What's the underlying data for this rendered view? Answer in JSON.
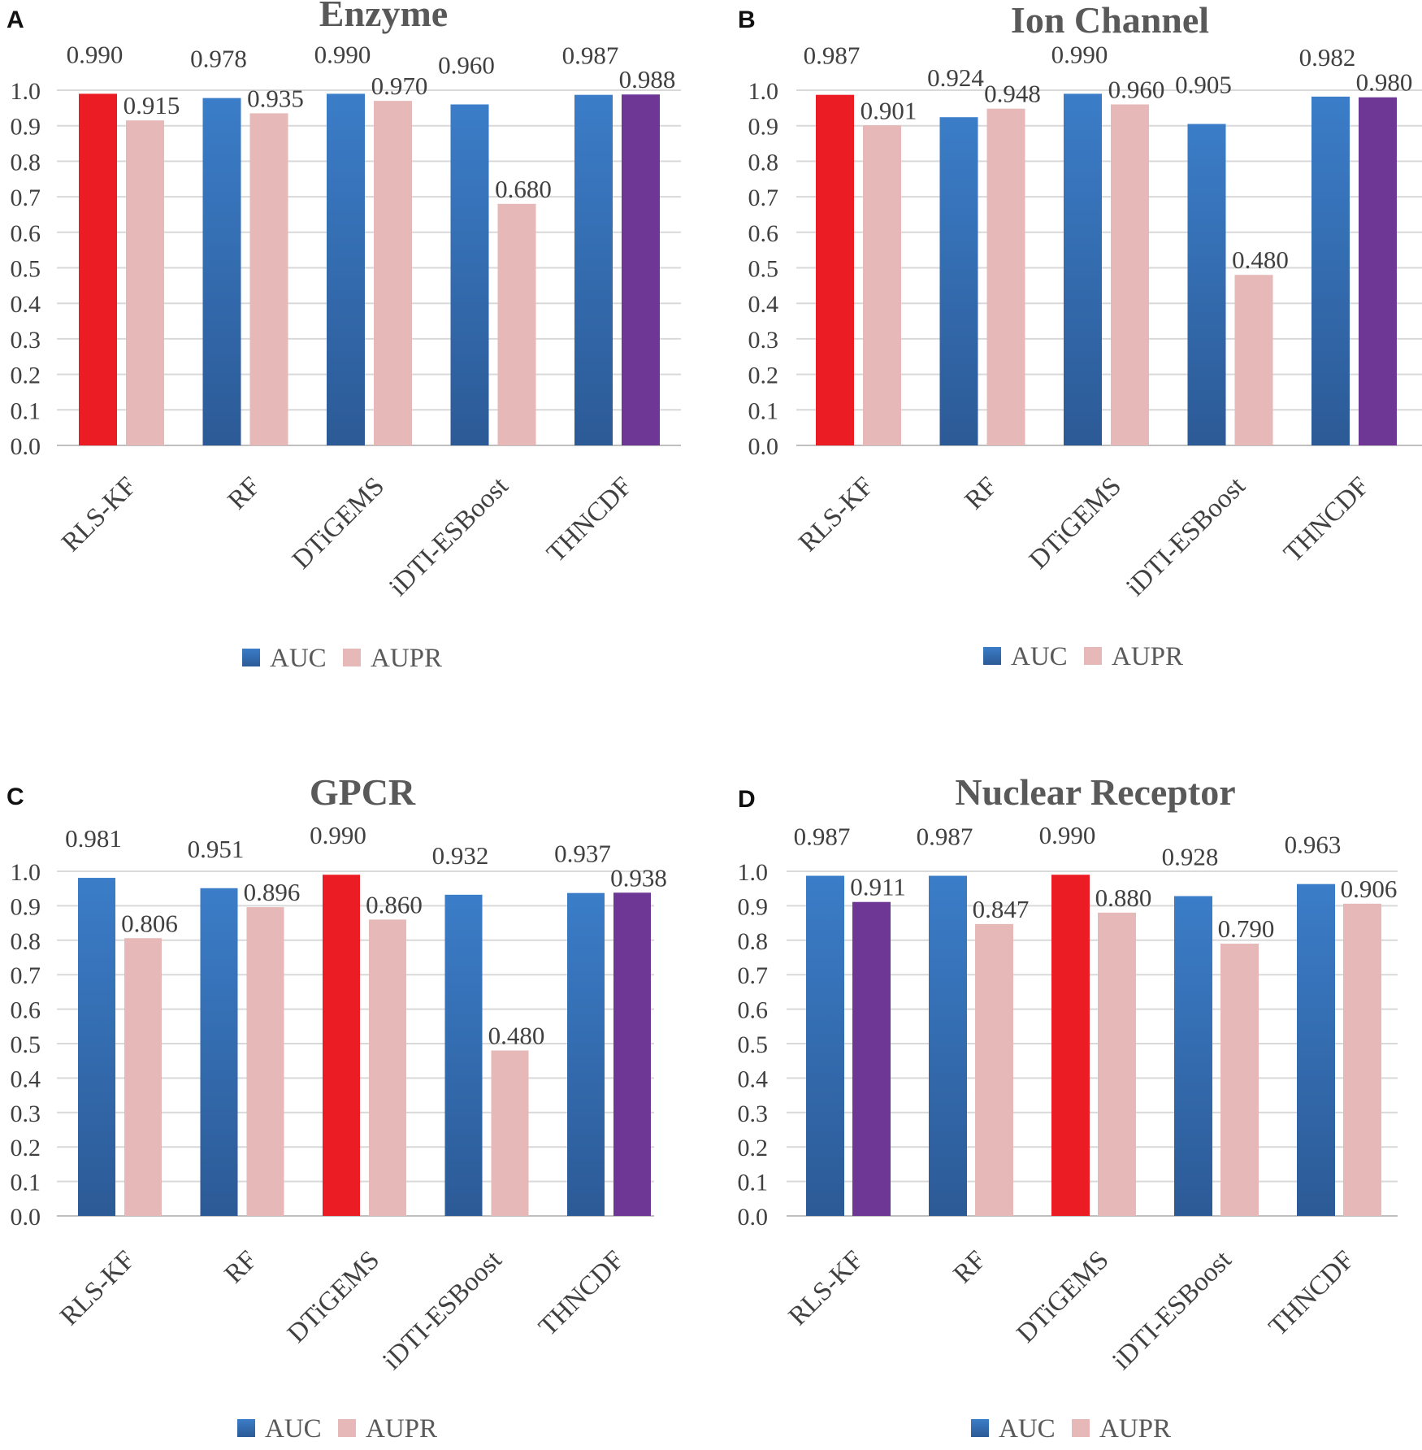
{
  "colors": {
    "auc_top": "#3b7dc8",
    "auc_bottom": "#2c5a96",
    "aupr": "#e6b8b7",
    "best": "#ec1c24",
    "second": "#6e3796"
  },
  "legend": {
    "auc": "AUC",
    "aupr": "AUPR"
  },
  "chart_data": [
    {
      "panel": "A",
      "type": "bar",
      "title": "Enzyme",
      "categories": [
        "RLS-KF",
        "RF",
        "DTiGEMS",
        "iDTI-ESBoost",
        "THNCDF"
      ],
      "series": [
        {
          "name": "AUC",
          "values": [
            0.99,
            0.978,
            0.99,
            0.96,
            0.987
          ],
          "labels": [
            "0.990",
            "0.978",
            "0.990",
            "0.960",
            "0.987"
          ],
          "highlight": [
            "best",
            "",
            "",
            "",
            ""
          ]
        },
        {
          "name": "AUPR",
          "values": [
            0.915,
            0.935,
            0.97,
            0.68,
            0.988
          ],
          "labels": [
            "0.915",
            "0.935",
            "0.970",
            "0.680",
            "0.988"
          ],
          "highlight": [
            "",
            "",
            "",
            "",
            "second"
          ]
        }
      ],
      "yticks": [
        "0.0",
        "0.1",
        "0.2",
        "0.3",
        "0.4",
        "0.5",
        "0.6",
        "0.7",
        "0.8",
        "0.9",
        "1.0"
      ],
      "ylim": [
        0,
        1.0
      ],
      "grid": true,
      "legend_position": "bottom"
    },
    {
      "panel": "B",
      "type": "bar",
      "title": "Ion Channel",
      "categories": [
        "RLS-KF",
        "RF",
        "DTiGEMS",
        "iDTI-ESBoost",
        "THNCDF"
      ],
      "series": [
        {
          "name": "AUC",
          "values": [
            0.987,
            0.924,
            0.99,
            0.905,
            0.982
          ],
          "labels": [
            "0.987",
            "0.924",
            "0.990",
            "0.905",
            "0.982"
          ],
          "highlight": [
            "best",
            "",
            "",
            "",
            ""
          ]
        },
        {
          "name": "AUPR",
          "values": [
            0.901,
            0.948,
            0.96,
            0.48,
            0.98
          ],
          "labels": [
            "0.901",
            "0.948",
            "0.960",
            "0.480",
            "0.980"
          ],
          "highlight": [
            "",
            "",
            "",
            "",
            "second"
          ]
        }
      ],
      "yticks": [
        "0.0",
        "0.1",
        "0.2",
        "0.3",
        "0.4",
        "0.5",
        "0.6",
        "0.7",
        "0.8",
        "0.9",
        "1.0"
      ],
      "ylim": [
        0,
        1.0
      ],
      "grid": true,
      "legend_position": "bottom"
    },
    {
      "panel": "C",
      "type": "bar",
      "title": "GPCR",
      "categories": [
        "RLS-KF",
        "RF",
        "DTiGEMS",
        "iDTI-ESBoost",
        "THNCDF"
      ],
      "series": [
        {
          "name": "AUC",
          "values": [
            0.981,
            0.951,
            0.99,
            0.932,
            0.937
          ],
          "labels": [
            "0.981",
            "0.951",
            "0.990",
            "0.932",
            "0.937"
          ],
          "highlight": [
            "",
            "",
            "best",
            "",
            ""
          ]
        },
        {
          "name": "AUPR",
          "values": [
            0.806,
            0.896,
            0.86,
            0.48,
            0.938
          ],
          "labels": [
            "0.806",
            "0.896",
            "0.860",
            "0.480",
            "0.938"
          ],
          "highlight": [
            "",
            "",
            "",
            "",
            "second"
          ]
        }
      ],
      "yticks": [
        "0.0",
        "0.1",
        "0.2",
        "0.3",
        "0.4",
        "0.5",
        "0.6",
        "0.7",
        "0.8",
        "0.9",
        "1.0"
      ],
      "ylim": [
        0,
        1.0
      ],
      "grid": true,
      "legend_position": "bottom"
    },
    {
      "panel": "D",
      "type": "bar",
      "title": "Nuclear Receptor",
      "categories": [
        "RLS-KF",
        "RF",
        "DTiGEMS",
        "iDTI-ESBoost",
        "THNCDF"
      ],
      "series": [
        {
          "name": "AUC",
          "values": [
            0.987,
            0.987,
            0.99,
            0.928,
            0.963
          ],
          "labels": [
            "0.987",
            "0.987",
            "0.990",
            "0.928",
            "0.963"
          ],
          "highlight": [
            "",
            "",
            "best",
            "",
            ""
          ]
        },
        {
          "name": "AUPR",
          "values": [
            0.911,
            0.847,
            0.88,
            0.79,
            0.906
          ],
          "labels": [
            "0.911",
            "0.847",
            "0.880",
            "0.790",
            "0.906"
          ],
          "highlight": [
            "second",
            "",
            "",
            "",
            ""
          ]
        }
      ],
      "yticks": [
        "0.0",
        "0.1",
        "0.2",
        "0.3",
        "0.4",
        "0.5",
        "0.6",
        "0.7",
        "0.8",
        "0.9",
        "1.0"
      ],
      "ylim": [
        0,
        1.0
      ],
      "grid": true,
      "legend_position": "bottom"
    }
  ]
}
